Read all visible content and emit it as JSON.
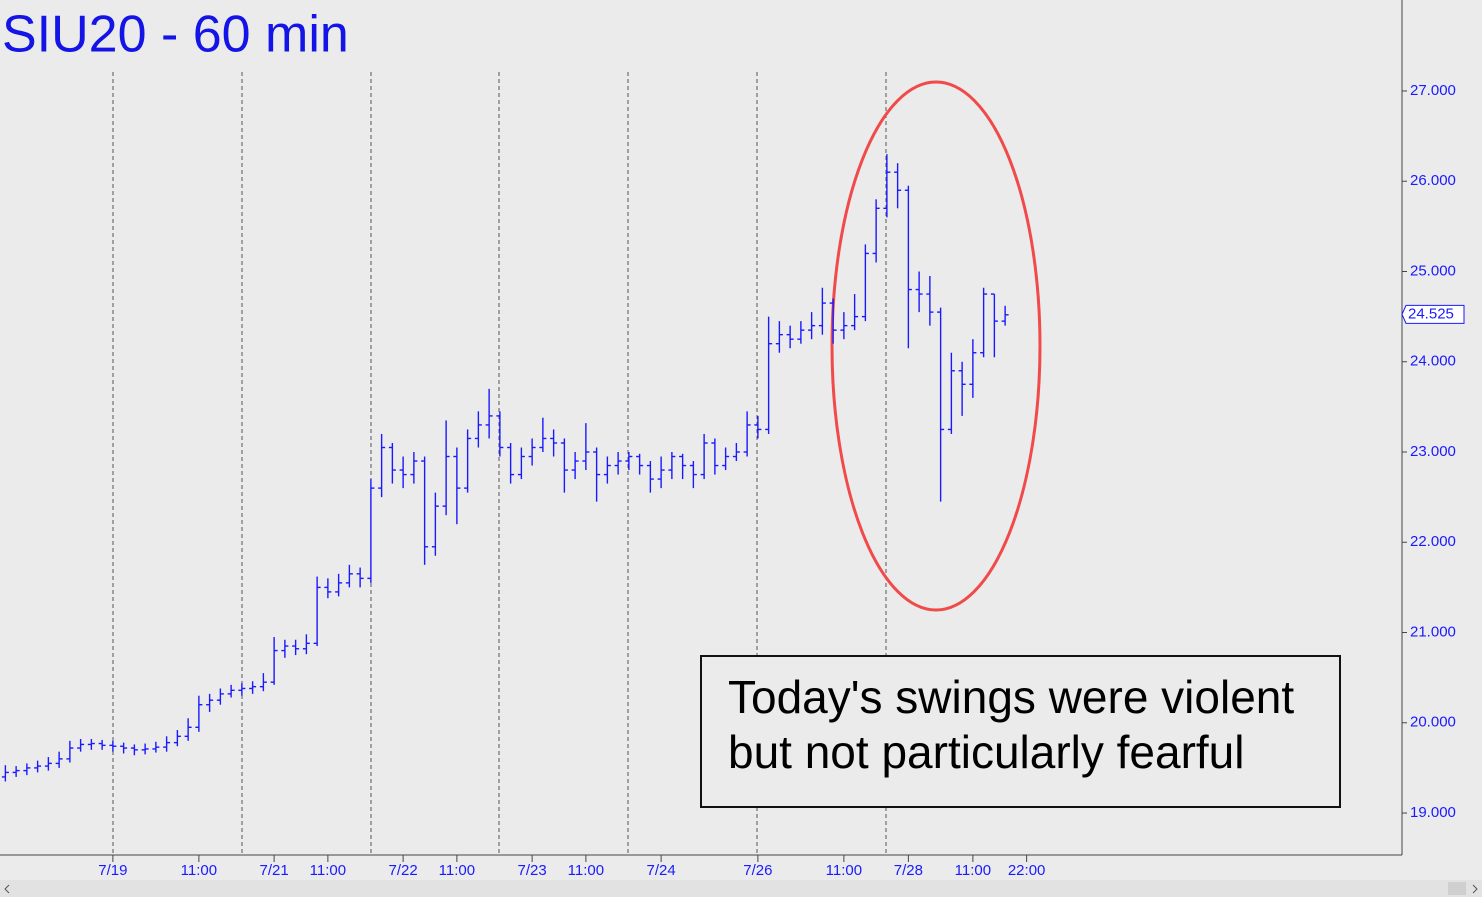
{
  "chart_data": {
    "type": "ohlc",
    "title": "SIU20 - 60 min",
    "annotation": [
      "Today's swings were violent",
      "but not particularly fearful"
    ],
    "color": "#1a1aff",
    "categories": [
      null,
      null,
      null,
      null,
      null,
      null,
      null,
      null,
      null,
      null,
      "7/19",
      null,
      null,
      null,
      null,
      null,
      null,
      null,
      "11:00",
      null,
      null,
      null,
      null,
      null,
      null,
      "7/21",
      null,
      null,
      null,
      null,
      "11:00",
      null,
      null,
      null,
      null,
      null,
      null,
      "7/22",
      null,
      null,
      null,
      null,
      "11:00",
      null,
      null,
      null,
      null,
      null,
      null,
      "7/23",
      null,
      null,
      null,
      null,
      "11:00",
      null,
      null,
      null,
      null,
      null,
      null,
      "7/24",
      null,
      null,
      null,
      null,
      null,
      null,
      null,
      null,
      "7/26",
      null,
      null,
      null,
      null,
      null,
      null,
      null,
      "11:00",
      null,
      null,
      null,
      null,
      null,
      "7/28",
      null,
      null,
      null,
      null,
      null,
      "11:00",
      null,
      null,
      null,
      null,
      "22:00"
    ],
    "open": [
      19.4,
      19.45,
      19.47,
      19.5,
      19.52,
      19.55,
      19.6,
      19.72,
      19.76,
      19.77,
      19.75,
      19.74,
      19.72,
      19.7,
      19.71,
      19.73,
      19.78,
      19.85,
      19.95,
      20.2,
      20.25,
      20.32,
      20.36,
      20.38,
      20.4,
      20.45,
      20.8,
      20.85,
      20.82,
      20.88,
      21.5,
      21.45,
      21.55,
      21.65,
      21.6,
      22.6,
      23.05,
      22.8,
      22.75,
      22.9,
      21.95,
      22.4,
      22.95,
      22.6,
      23.15,
      23.3,
      23.4,
      23.05,
      22.75,
      22.95,
      23.05,
      23.15,
      23.1,
      22.8,
      22.9,
      23.0,
      22.75,
      22.85,
      22.9,
      22.95,
      22.85,
      22.7,
      22.8,
      22.95,
      22.85,
      22.75,
      23.1,
      22.85,
      22.95,
      23.0,
      23.3,
      23.25,
      24.2,
      24.3,
      24.25,
      24.35,
      24.4,
      24.65,
      24.35,
      24.4,
      24.5,
      25.2,
      25.7,
      26.1,
      25.9,
      24.8,
      24.75,
      24.55,
      23.25,
      23.9,
      23.75,
      24.1,
      24.75,
      24.45,
      null,
      null
    ],
    "high": [
      19.53,
      19.52,
      19.55,
      19.58,
      19.62,
      19.68,
      19.8,
      19.82,
      19.82,
      19.81,
      19.8,
      19.78,
      19.76,
      19.77,
      19.79,
      19.85,
      19.92,
      20.05,
      20.3,
      20.32,
      20.38,
      20.42,
      20.44,
      20.46,
      20.55,
      20.95,
      20.92,
      20.92,
      20.98,
      21.62,
      21.6,
      21.65,
      21.75,
      21.72,
      22.7,
      23.2,
      23.1,
      22.95,
      23.0,
      22.95,
      22.55,
      23.35,
      23.05,
      23.25,
      23.45,
      23.7,
      23.45,
      23.1,
      23.05,
      23.15,
      23.38,
      23.25,
      23.15,
      23.0,
      23.32,
      23.05,
      22.95,
      23.0,
      23.0,
      22.98,
      22.9,
      22.95,
      23.0,
      22.98,
      22.9,
      23.2,
      23.15,
      23.05,
      23.1,
      23.45,
      23.4,
      24.5,
      24.45,
      24.4,
      24.45,
      24.55,
      24.82,
      24.7,
      24.55,
      24.75,
      25.3,
      25.8,
      26.3,
      26.2,
      25.95,
      25.0,
      24.95,
      24.6,
      24.1,
      24.0,
      24.25,
      24.82,
      24.75,
      24.62,
      null,
      null
    ],
    "low": [
      19.35,
      19.4,
      19.42,
      19.45,
      19.47,
      19.5,
      19.56,
      19.68,
      19.7,
      19.7,
      19.68,
      19.66,
      19.64,
      19.65,
      19.67,
      19.68,
      19.74,
      19.8,
      19.9,
      20.12,
      20.2,
      20.28,
      20.3,
      20.32,
      20.35,
      20.42,
      20.72,
      20.75,
      20.76,
      20.85,
      21.38,
      21.4,
      21.5,
      21.5,
      21.55,
      22.5,
      22.65,
      22.6,
      22.65,
      21.75,
      21.85,
      22.3,
      22.2,
      22.55,
      23.05,
      23.15,
      22.95,
      22.65,
      22.7,
      22.85,
      23.0,
      22.95,
      22.55,
      22.7,
      22.8,
      22.45,
      22.65,
      22.75,
      22.8,
      22.75,
      22.55,
      22.6,
      22.7,
      22.7,
      22.6,
      22.7,
      22.75,
      22.8,
      22.9,
      22.95,
      23.15,
      23.2,
      24.1,
      24.15,
      24.2,
      24.25,
      24.3,
      24.2,
      24.25,
      24.35,
      24.45,
      25.1,
      25.6,
      25.7,
      24.15,
      24.55,
      24.4,
      22.45,
      23.2,
      23.4,
      23.6,
      24.05,
      24.05,
      24.4,
      null,
      null
    ],
    "close": [
      19.45,
      19.47,
      19.5,
      19.52,
      19.55,
      19.6,
      19.72,
      19.76,
      19.77,
      19.75,
      19.74,
      19.72,
      19.7,
      19.71,
      19.73,
      19.78,
      19.85,
      19.95,
      20.2,
      20.25,
      20.32,
      20.36,
      20.38,
      20.4,
      20.45,
      20.8,
      20.85,
      20.82,
      20.88,
      21.5,
      21.45,
      21.55,
      21.65,
      21.6,
      22.6,
      23.05,
      22.8,
      22.75,
      22.9,
      21.95,
      22.4,
      22.95,
      22.6,
      23.15,
      23.3,
      23.4,
      23.05,
      22.75,
      22.95,
      23.05,
      23.15,
      23.1,
      22.8,
      22.9,
      23.0,
      22.75,
      22.85,
      22.9,
      22.95,
      22.85,
      22.7,
      22.8,
      22.95,
      22.85,
      22.75,
      23.1,
      22.85,
      22.95,
      23.0,
      23.3,
      23.25,
      24.2,
      24.3,
      24.25,
      24.35,
      24.4,
      24.65,
      24.35,
      24.4,
      24.5,
      25.2,
      25.7,
      26.1,
      25.9,
      24.8,
      24.75,
      24.55,
      23.25,
      23.9,
      23.75,
      24.1,
      24.75,
      24.45,
      24.52,
      null,
      null
    ],
    "last_price": 24.525,
    "ylim": [
      18.535,
      28.008
    ],
    "yticks": [
      {
        "value": 19,
        "label": "19.000"
      },
      {
        "value": 20,
        "label": "20.000"
      },
      {
        "value": 21,
        "label": "21.000"
      },
      {
        "value": 22,
        "label": "22.000"
      },
      {
        "value": 23,
        "label": "23.000"
      },
      {
        "value": 24,
        "label": "24.000"
      },
      {
        "value": 25,
        "label": "25.000"
      },
      {
        "value": 26,
        "label": "26.000"
      },
      {
        "value": 27,
        "label": "27.000"
      }
    ]
  }
}
